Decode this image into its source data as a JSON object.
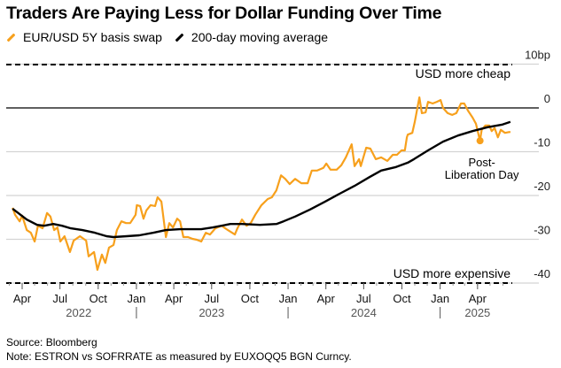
{
  "chart_data": {
    "type": "line",
    "title": "Traders Are Paying Less for Dollar Funding Over Time",
    "y_unit": "bp",
    "ylim": [
      -40,
      10
    ],
    "y_ticks": [
      {
        "value": 10,
        "label": "10bp"
      },
      {
        "value": 0,
        "label": "0"
      },
      {
        "value": -10,
        "label": "-10"
      },
      {
        "value": -20,
        "label": "-20"
      },
      {
        "value": -30,
        "label": "-30"
      },
      {
        "value": -40,
        "label": "-40"
      }
    ],
    "y_axis_side": "right",
    "grid": true,
    "legend_placement": "top-left",
    "x_ticks": [
      {
        "date": "2022-04-01",
        "label": "Apr"
      },
      {
        "date": "2022-07-01",
        "label": "Jul"
      },
      {
        "date": "2022-10-01",
        "label": "Oct"
      },
      {
        "date": "2023-01-01",
        "label": "Jan"
      },
      {
        "date": "2023-04-01",
        "label": "Apr"
      },
      {
        "date": "2023-07-01",
        "label": "Jul"
      },
      {
        "date": "2023-10-01",
        "label": "Oct"
      },
      {
        "date": "2024-01-01",
        "label": "Jan"
      },
      {
        "date": "2024-04-01",
        "label": "Apr"
      },
      {
        "date": "2024-07-01",
        "label": "Jul"
      },
      {
        "date": "2024-10-01",
        "label": "Oct"
      },
      {
        "date": "2025-01-01",
        "label": "Jan"
      },
      {
        "date": "2025-04-01",
        "label": "Apr"
      }
    ],
    "x_years": [
      {
        "center": "2022-08-15",
        "label": "2022"
      },
      {
        "center": "2023-07-01",
        "label": "2023"
      },
      {
        "center": "2024-07-01",
        "label": "2024"
      },
      {
        "center": "2025-04-01",
        "label": "2025"
      }
    ],
    "reference_lines": [
      {
        "value": 8,
        "style": "dashed",
        "label": "USD more cheap"
      },
      {
        "value": -40,
        "style": "dashed",
        "label": "USD more expensive"
      }
    ],
    "annotations": [
      {
        "date": "2025-04-07",
        "value": -7.5,
        "label_line1": "Post-",
        "label_line2": "Liberation Day"
      }
    ],
    "series": [
      {
        "name": "EUR/USD 5Y basis swap",
        "color": "#f7a01c",
        "points": [
          [
            "2022-03-09",
            -22.8
          ],
          [
            "2022-03-15",
            -24.4
          ],
          [
            "2022-03-26",
            -25.9
          ],
          [
            "2022-04-01",
            -24.6
          ],
          [
            "2022-04-12",
            -27.9
          ],
          [
            "2022-04-22",
            -28.5
          ],
          [
            "2022-05-01",
            -30.5
          ],
          [
            "2022-05-09",
            -26.9
          ],
          [
            "2022-05-20",
            -27.5
          ],
          [
            "2022-05-31",
            -24.0
          ],
          [
            "2022-06-08",
            -24.8
          ],
          [
            "2022-06-17",
            -27.9
          ],
          [
            "2022-06-25",
            -27.3
          ],
          [
            "2022-07-02",
            -30.5
          ],
          [
            "2022-07-12",
            -29.3
          ],
          [
            "2022-07-25",
            -32.9
          ],
          [
            "2022-08-03",
            -30.3
          ],
          [
            "2022-08-18",
            -29.3
          ],
          [
            "2022-09-02",
            -30.3
          ],
          [
            "2022-09-08",
            -33.9
          ],
          [
            "2022-09-21",
            -32.9
          ],
          [
            "2022-09-29",
            -37.0
          ],
          [
            "2022-10-10",
            -33.5
          ],
          [
            "2022-10-18",
            -35.4
          ],
          [
            "2022-10-27",
            -31.9
          ],
          [
            "2022-11-07",
            -31.3
          ],
          [
            "2022-11-15",
            -27.9
          ],
          [
            "2022-11-26",
            -25.9
          ],
          [
            "2022-12-07",
            -26.3
          ],
          [
            "2022-12-17",
            -26.3
          ],
          [
            "2022-12-30",
            -24.4
          ],
          [
            "2023-01-02",
            -22.2
          ],
          [
            "2023-01-10",
            -22.4
          ],
          [
            "2023-01-18",
            -25.3
          ],
          [
            "2023-01-25",
            -23.4
          ],
          [
            "2023-02-04",
            -22.2
          ],
          [
            "2023-02-15",
            -22.4
          ],
          [
            "2023-02-21",
            -20.4
          ],
          [
            "2023-03-02",
            -21.4
          ],
          [
            "2023-03-13",
            -29.5
          ],
          [
            "2023-03-21",
            -26.3
          ],
          [
            "2023-03-30",
            -27.3
          ],
          [
            "2023-04-09",
            -25.3
          ],
          [
            "2023-04-16",
            -25.9
          ],
          [
            "2023-04-24",
            -29.5
          ],
          [
            "2023-05-05",
            -29.5
          ],
          [
            "2023-05-16",
            -29.9
          ],
          [
            "2023-05-26",
            -30.1
          ],
          [
            "2023-06-06",
            -30.5
          ],
          [
            "2023-06-17",
            -28.5
          ],
          [
            "2023-06-27",
            -28.9
          ],
          [
            "2023-07-10",
            -27.5
          ],
          [
            "2023-07-25",
            -26.9
          ],
          [
            "2023-08-09",
            -27.9
          ],
          [
            "2023-08-26",
            -28.9
          ],
          [
            "2023-09-01",
            -27.5
          ],
          [
            "2023-09-12",
            -25.5
          ],
          [
            "2023-09-23",
            -26.9
          ],
          [
            "2023-10-03",
            -26.3
          ],
          [
            "2023-10-14",
            -24.4
          ],
          [
            "2023-10-29",
            -22.2
          ],
          [
            "2023-11-13",
            -20.8
          ],
          [
            "2023-11-23",
            -20.4
          ],
          [
            "2023-12-04",
            -18.8
          ],
          [
            "2023-12-15",
            -15.4
          ],
          [
            "2023-12-25",
            -16.2
          ],
          [
            "2024-01-05",
            -17.4
          ],
          [
            "2024-01-18",
            -16.2
          ],
          [
            "2024-02-02",
            -17.2
          ],
          [
            "2024-02-17",
            -17.2
          ],
          [
            "2024-02-27",
            -14.3
          ],
          [
            "2024-03-11",
            -14.3
          ],
          [
            "2024-03-26",
            -13.7
          ],
          [
            "2024-04-02",
            -12.7
          ],
          [
            "2024-04-12",
            -14.1
          ],
          [
            "2024-04-27",
            -14.1
          ],
          [
            "2024-05-08",
            -13.1
          ],
          [
            "2024-05-19",
            -11.3
          ],
          [
            "2024-06-02",
            -8.3
          ],
          [
            "2024-06-09",
            -13.3
          ],
          [
            "2024-06-20",
            -11.7
          ],
          [
            "2024-06-24",
            -13.3
          ],
          [
            "2024-07-07",
            -9.1
          ],
          [
            "2024-07-17",
            -9.3
          ],
          [
            "2024-07-30",
            -11.7
          ],
          [
            "2024-08-12",
            -11.3
          ],
          [
            "2024-08-27",
            -12.1
          ],
          [
            "2024-09-09",
            -10.7
          ],
          [
            "2024-09-19",
            -10.7
          ],
          [
            "2024-09-30",
            -9.7
          ],
          [
            "2024-10-08",
            -9.7
          ],
          [
            "2024-10-13",
            -6.7
          ],
          [
            "2024-10-15",
            -6.1
          ],
          [
            "2024-10-26",
            -5.7
          ],
          [
            "2024-11-01",
            -3.2
          ],
          [
            "2024-11-12",
            2.4
          ],
          [
            "2024-11-18",
            -1.2
          ],
          [
            "2024-11-27",
            -1.0
          ],
          [
            "2024-12-03",
            1.4
          ],
          [
            "2024-12-14",
            1.0
          ],
          [
            "2024-12-24",
            1.4
          ],
          [
            "2025-01-02",
            1.8
          ],
          [
            "2025-01-08",
            0.0
          ],
          [
            "2025-01-19",
            -1.2
          ],
          [
            "2025-01-30",
            -1.6
          ],
          [
            "2025-02-09",
            -1.2
          ],
          [
            "2025-02-20",
            1.0
          ],
          [
            "2025-02-28",
            1.0
          ],
          [
            "2025-03-09",
            -0.6
          ],
          [
            "2025-03-20",
            -2.2
          ],
          [
            "2025-03-28",
            -3.6
          ],
          [
            "2025-04-07",
            -7.5
          ],
          [
            "2025-04-11",
            -5.0
          ],
          [
            "2025-04-20",
            -4.0
          ],
          [
            "2025-04-29",
            -4.0
          ],
          [
            "2025-05-05",
            -5.3
          ],
          [
            "2025-05-12",
            -4.6
          ],
          [
            "2025-05-20",
            -6.7
          ],
          [
            "2025-05-27",
            -5.0
          ],
          [
            "2025-06-06",
            -5.7
          ],
          [
            "2025-06-17",
            -5.5
          ],
          [
            "2025-06-19",
            -5.6
          ]
        ]
      },
      {
        "name": "200-day moving average",
        "color": "#000000",
        "points": [
          [
            "2022-03-09",
            -23.0
          ],
          [
            "2022-04-12",
            -25.5
          ],
          [
            "2022-05-07",
            -26.7
          ],
          [
            "2022-05-24",
            -26.9
          ],
          [
            "2022-06-15",
            -26.5
          ],
          [
            "2022-07-06",
            -26.9
          ],
          [
            "2022-07-27",
            -27.5
          ],
          [
            "2022-08-24",
            -27.9
          ],
          [
            "2022-09-23",
            -28.5
          ],
          [
            "2022-10-21",
            -29.3
          ],
          [
            "2022-11-07",
            -29.5
          ],
          [
            "2022-12-09",
            -29.3
          ],
          [
            "2023-01-08",
            -29.1
          ],
          [
            "2023-02-11",
            -28.5
          ],
          [
            "2023-03-13",
            -27.9
          ],
          [
            "2023-04-16",
            -27.7
          ],
          [
            "2023-06-06",
            -27.7
          ],
          [
            "2023-07-04",
            -27.3
          ],
          [
            "2023-08-15",
            -26.5
          ],
          [
            "2023-09-12",
            -26.5
          ],
          [
            "2023-10-25",
            -26.7
          ],
          [
            "2023-12-04",
            -26.5
          ],
          [
            "2023-12-21",
            -25.9
          ],
          [
            "2024-01-18",
            -24.8
          ],
          [
            "2024-02-23",
            -23.2
          ],
          [
            "2024-03-30",
            -21.4
          ],
          [
            "2024-05-04",
            -19.6
          ],
          [
            "2024-06-09",
            -17.8
          ],
          [
            "2024-07-15",
            -15.8
          ],
          [
            "2024-08-12",
            -14.3
          ],
          [
            "2024-09-17",
            -13.5
          ],
          [
            "2024-10-15",
            -12.5
          ],
          [
            "2024-10-30",
            -11.7
          ],
          [
            "2024-12-03",
            -9.7
          ],
          [
            "2025-01-08",
            -7.7
          ],
          [
            "2025-02-13",
            -6.3
          ],
          [
            "2025-03-20",
            -5.3
          ],
          [
            "2025-04-25",
            -4.4
          ],
          [
            "2025-05-31",
            -3.8
          ],
          [
            "2025-06-19",
            -3.2
          ]
        ]
      }
    ]
  },
  "legend": {
    "items": [
      {
        "label": "EUR/USD 5Y basis swap",
        "color": "#f7a01c"
      },
      {
        "label": "200-day moving average",
        "color": "#000000"
      }
    ]
  },
  "footer": {
    "source": "Source: Bloomberg",
    "note": "Note: ESTRON vs SOFRRATE as measured by EUXOQQ5 BGN Curncy."
  }
}
